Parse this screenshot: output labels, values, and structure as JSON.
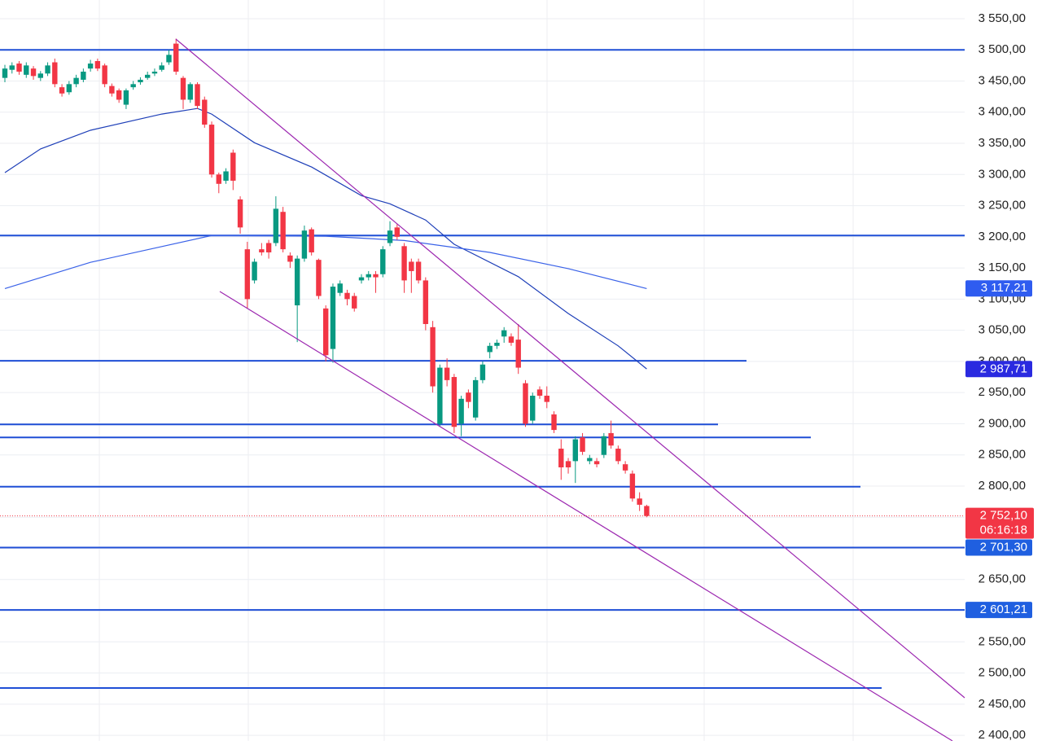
{
  "chart_data": {
    "type": "candlestick",
    "categories": [
      null,
      null,
      null,
      null,
      null,
      null,
      null,
      null,
      null,
      null,
      null,
      null,
      null,
      null,
      null,
      null,
      null,
      null,
      null,
      null,
      null,
      null,
      null,
      null,
      null,
      null,
      null,
      null,
      null,
      null,
      null,
      null,
      null,
      null,
      null,
      null,
      null,
      null,
      null,
      null,
      null,
      null,
      null,
      null,
      null,
      null,
      null,
      null,
      null,
      null,
      null,
      null,
      null,
      null,
      null,
      null,
      null,
      null,
      null,
      null,
      null,
      null,
      null,
      null,
      null,
      null,
      null,
      null,
      null,
      null,
      null,
      null,
      null,
      null,
      null,
      null,
      null,
      null,
      null,
      null,
      null,
      null,
      null,
      null,
      null,
      null,
      null,
      null,
      null,
      null,
      null
    ],
    "open": [
      3455,
      3468,
      3478,
      3460,
      3470,
      3455,
      3462,
      3480,
      3440,
      3432,
      3445,
      3452,
      3470,
      3482,
      3475,
      3442,
      3435,
      3412,
      3440,
      3448,
      3455,
      3462,
      3468,
      3480,
      3510,
      3455,
      3420,
      3445,
      3420,
      3380,
      3300,
      3290,
      3335,
      3260,
      3180,
      3130,
      3180,
      3190,
      3190,
      3240,
      3170,
      3090,
      3165,
      3212,
      3163,
      3085,
      3020,
      3110,
      3110,
      3105,
      3130,
      3135,
      3140,
      3140,
      3190,
      3215,
      3185,
      3160,
      3160,
      3130,
      3055,
      2900,
      2990,
      2975,
      2900,
      2950,
      2910,
      2970,
      3015,
      3025,
      3040,
      3040,
      3035,
      2965,
      2905,
      2955,
      2945,
      2915,
      2860,
      2840,
      2840,
      2878,
      2840,
      2840,
      2850,
      2885,
      2860,
      2835,
      2820,
      2780,
      2768
    ],
    "high": [
      3476,
      3480,
      3482,
      3480,
      3474,
      3466,
      3480,
      3486,
      3445,
      3450,
      3460,
      3470,
      3484,
      3486,
      3478,
      3446,
      3438,
      3438,
      3450,
      3456,
      3465,
      3470,
      3480,
      3500,
      3518,
      3458,
      3448,
      3448,
      3425,
      3385,
      3303,
      3310,
      3340,
      3265,
      3192,
      3165,
      3190,
      3195,
      3265,
      3248,
      3175,
      3170,
      3218,
      3215,
      3165,
      3090,
      3125,
      3130,
      3115,
      3110,
      3140,
      3145,
      3145,
      3185,
      3225,
      3220,
      3190,
      3165,
      3165,
      3135,
      3065,
      2995,
      3005,
      2980,
      2945,
      2955,
      2975,
      3000,
      3030,
      3035,
      3055,
      3045,
      3060,
      2970,
      2950,
      2960,
      2960,
      2920,
      2875,
      2845,
      2880,
      2885,
      2850,
      2845,
      2885,
      2905,
      2865,
      2840,
      2825,
      2790,
      2770
    ],
    "low": [
      3448,
      3462,
      3460,
      3455,
      3452,
      3450,
      3458,
      3440,
      3425,
      3428,
      3440,
      3448,
      3465,
      3466,
      3440,
      3425,
      3415,
      3405,
      3436,
      3444,
      3452,
      3458,
      3465,
      3476,
      3460,
      3405,
      3415,
      3405,
      3375,
      3295,
      3270,
      3285,
      3275,
      3205,
      3085,
      3125,
      3170,
      3165,
      3185,
      3175,
      3150,
      3031,
      3160,
      3170,
      3100,
      3000,
      2998,
      3105,
      3090,
      3080,
      3125,
      3130,
      3110,
      3135,
      3185,
      3195,
      3110,
      3110,
      3125,
      3050,
      2950,
      2895,
      2960,
      2885,
      2880,
      2925,
      2905,
      2965,
      3005,
      3020,
      3030,
      3025,
      2980,
      2895,
      2900,
      2940,
      2925,
      2885,
      2810,
      2820,
      2805,
      2850,
      2835,
      2830,
      2845,
      2860,
      2835,
      2820,
      2775,
      2760,
      2750
    ],
    "close": [
      3470,
      3475,
      3465,
      3475,
      3458,
      3462,
      3475,
      3445,
      3430,
      3445,
      3455,
      3465,
      3478,
      3470,
      3445,
      3430,
      3420,
      3435,
      3445,
      3452,
      3460,
      3465,
      3475,
      3492,
      3465,
      3420,
      3445,
      3410,
      3380,
      3300,
      3285,
      3305,
      3290,
      3215,
      3100,
      3160,
      3175,
      3175,
      3245,
      3180,
      3160,
      3165,
      3210,
      3175,
      3105,
      3010,
      3120,
      3125,
      3100,
      3085,
      3135,
      3140,
      3135,
      3180,
      3210,
      3200,
      3130,
      3145,
      3130,
      3060,
      2960,
      2990,
      2970,
      2895,
      2940,
      2935,
      2970,
      2995,
      3025,
      3030,
      3050,
      3030,
      2990,
      2900,
      2945,
      2945,
      2935,
      2890,
      2830,
      2830,
      2875,
      2855,
      2845,
      2835,
      2880,
      2865,
      2840,
      2825,
      2780,
      2770,
      2752.1
    ],
    "up_color": "#089981",
    "down_color": "#f23645",
    "lines": [
      {
        "color": "#1e3fb8",
        "x": [
          0,
          5,
          12,
          22,
          27,
          29,
          35,
          43,
          50,
          54,
          59,
          63,
          72,
          79,
          86,
          90
        ],
        "values": [
          3303,
          3341,
          3371,
          3397,
          3406,
          3397,
          3351,
          3312,
          3266,
          3253,
          3227,
          3188,
          3136,
          3077,
          3025,
          2988
        ]
      },
      {
        "color": "#3a62e8",
        "x": [
          0,
          12,
          29,
          45,
          56,
          68,
          79,
          90
        ],
        "values": [
          3117,
          3159,
          3202,
          3201,
          3194,
          3175,
          3149,
          3117
        ]
      }
    ],
    "levels": [
      3500,
      3202,
      3001,
      2899,
      2878,
      2799,
      2701.3,
      2601.21,
      2476
    ],
    "level_color": "#1f4fd6",
    "price_labels": [
      {
        "value": 3117.21,
        "label": "3 117,21",
        "color": "#2f5cf0"
      },
      {
        "value": 2987.71,
        "label": "2 987,71",
        "color": "#2a2ae0"
      },
      {
        "value": 2752.1,
        "label": "2 752,10",
        "countdown": "06:16:18",
        "color": "#f23645"
      },
      {
        "value": 2701.3,
        "label": "2 701,30",
        "color": "#1f5fe0"
      },
      {
        "value": 2601.21,
        "label": "2 601,21",
        "color": "#1f5fe0"
      }
    ],
    "ylim": [
      2391,
      3580
    ],
    "yticks": [
      {
        "value": 2400,
        "label": "2 400,00"
      },
      {
        "value": 2450,
        "label": "2 450,00"
      },
      {
        "value": 2500,
        "label": "2 500,00"
      },
      {
        "value": 2550,
        "label": "2 550,00"
      },
      {
        "value": 2600,
        "label": "2 600,00"
      },
      {
        "value": 2650,
        "label": "2 650,00"
      },
      {
        "value": 2700,
        "label": "2 700,00"
      },
      {
        "value": 2750,
        "label": "2 750,00"
      },
      {
        "value": 2800,
        "label": "2 800,00"
      },
      {
        "value": 2850,
        "label": "2 850,00"
      },
      {
        "value": 2900,
        "label": "2 900,00"
      },
      {
        "value": 2950,
        "label": "2 950,00"
      },
      {
        "value": 3000,
        "label": "3 000,00"
      },
      {
        "value": 3050,
        "label": "3 050,00"
      },
      {
        "value": 3100,
        "label": "3 100,00"
      },
      {
        "value": 3150,
        "label": "3 150,00"
      },
      {
        "value": 3200,
        "label": "3 200,00"
      },
      {
        "value": 3250,
        "label": "3 250,00"
      },
      {
        "value": 3300,
        "label": "3 300,00"
      },
      {
        "value": 3350,
        "label": "3 350,00"
      },
      {
        "value": 3400,
        "label": "3 400,00"
      },
      {
        "value": 3450,
        "label": "3 450,00"
      },
      {
        "value": 3500,
        "label": "3 500,00"
      },
      {
        "value": 3550,
        "label": "3 550,00"
      }
    ],
    "grid": true
  }
}
